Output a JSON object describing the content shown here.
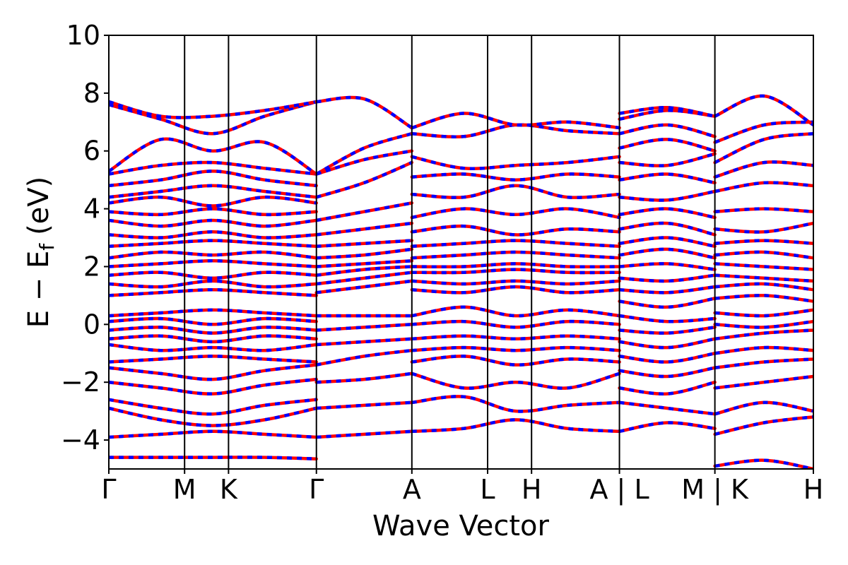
{
  "chart_data": {
    "type": "line",
    "title": "",
    "xlabel": "Wave Vector",
    "ylabel": "E − E_f (eV)",
    "ylabel_parts": {
      "main": "E − E",
      "sub": "f",
      "unit": "(eV)"
    },
    "ylim": [
      -5,
      10
    ],
    "yticks": [
      -4,
      -2,
      0,
      2,
      4,
      6,
      8,
      10
    ],
    "ytick_labels": [
      "−4",
      "−2",
      "0",
      "2",
      "4",
      "6",
      "8",
      "10"
    ],
    "xlim": [
      0,
      9.3
    ],
    "kpoints": [
      {
        "label": "Γ",
        "x": 0.0
      },
      {
        "label": "M",
        "x": 1.0
      },
      {
        "label": "K",
        "x": 1.58
      },
      {
        "label": "Γ",
        "x": 2.74
      },
      {
        "label": "A",
        "x": 4.0
      },
      {
        "label": "L",
        "x": 5.0
      },
      {
        "label": "H",
        "x": 5.58
      },
      {
        "label": "A | L",
        "x": 6.74
      },
      {
        "label": "M | K",
        "x": 8.0
      },
      {
        "label": "H",
        "x": 9.3
      }
    ],
    "line_style": {
      "series_1": "#ff0000",
      "series_2": "#0000ff",
      "series_2_dash": "dashed"
    },
    "segments": [
      {
        "x_start": 0.0,
        "x_end": 2.74,
        "bands": [
          [
            -4.6,
            -4.6,
            -4.6,
            -4.6,
            -4.65
          ],
          [
            -3.9,
            -3.8,
            -3.7,
            -3.8,
            -3.9
          ],
          [
            -2.9,
            -3.3,
            -3.5,
            -3.3,
            -2.9
          ],
          [
            -2.6,
            -2.9,
            -3.1,
            -2.8,
            -2.6
          ],
          [
            -2.0,
            -2.2,
            -2.4,
            -2.1,
            -1.9
          ],
          [
            -1.5,
            -1.7,
            -1.9,
            -1.6,
            -1.4
          ],
          [
            -1.3,
            -1.2,
            -1.1,
            -1.2,
            -1.3
          ],
          [
            -0.7,
            -0.9,
            -0.8,
            -0.9,
            -0.7
          ],
          [
            -0.5,
            -0.4,
            -0.6,
            -0.4,
            -0.5
          ],
          [
            -0.2,
            -0.1,
            -0.3,
            -0.1,
            -0.2
          ],
          [
            0.1,
            0.2,
            0.0,
            0.2,
            0.1
          ],
          [
            0.3,
            0.4,
            0.5,
            0.4,
            0.3
          ],
          [
            1.0,
            1.1,
            1.2,
            1.1,
            1.0
          ],
          [
            1.4,
            1.3,
            1.5,
            1.3,
            1.4
          ],
          [
            1.7,
            1.8,
            1.6,
            1.8,
            1.7
          ],
          [
            2.0,
            2.1,
            2.2,
            2.1,
            2.0
          ],
          [
            2.3,
            2.5,
            2.4,
            2.5,
            2.3
          ],
          [
            2.7,
            2.8,
            2.9,
            2.8,
            2.7
          ],
          [
            3.1,
            3.0,
            3.2,
            3.0,
            3.1
          ],
          [
            3.6,
            3.4,
            3.6,
            3.4,
            3.6
          ],
          [
            3.9,
            3.8,
            4.0,
            3.8,
            3.9
          ],
          [
            4.2,
            4.4,
            4.1,
            4.4,
            4.2
          ],
          [
            4.4,
            4.6,
            4.8,
            4.6,
            4.4
          ],
          [
            4.8,
            5.0,
            5.3,
            5.0,
            4.8
          ],
          [
            5.2,
            5.5,
            5.6,
            5.4,
            5.2
          ],
          [
            5.3,
            6.4,
            6.0,
            6.3,
            5.2
          ],
          [
            7.6,
            7.1,
            6.6,
            7.2,
            7.7
          ],
          [
            7.7,
            7.2,
            7.2,
            7.4,
            7.7
          ]
        ]
      },
      {
        "x_start": 2.74,
        "x_end": 4.0,
        "bands": [
          [
            -3.9,
            -3.8,
            -3.7
          ],
          [
            -2.9,
            -2.8,
            -2.7
          ],
          [
            -2.0,
            -1.9,
            -1.7
          ],
          [
            -1.4,
            -1.1,
            -0.9
          ],
          [
            -0.7,
            -0.6,
            -0.5
          ],
          [
            -0.2,
            -0.1,
            0.0
          ],
          [
            0.3,
            0.3,
            0.3
          ],
          [
            1.1,
            1.3,
            1.5
          ],
          [
            1.4,
            1.6,
            1.8
          ],
          [
            1.7,
            1.9,
            2.0
          ],
          [
            2.0,
            2.1,
            2.2
          ],
          [
            2.3,
            2.4,
            2.6
          ],
          [
            2.7,
            2.8,
            2.9
          ],
          [
            3.1,
            3.3,
            3.5
          ],
          [
            3.6,
            3.9,
            4.2
          ],
          [
            4.4,
            4.9,
            5.6
          ],
          [
            5.2,
            5.7,
            6.0
          ],
          [
            5.2,
            6.1,
            6.6
          ],
          [
            7.7,
            7.8,
            6.8
          ]
        ]
      },
      {
        "x_start": 4.0,
        "x_end": 6.74,
        "bands": [
          [
            -3.7,
            -3.6,
            -3.3,
            -3.6,
            -3.7
          ],
          [
            -2.7,
            -2.5,
            -3.0,
            -2.8,
            -2.7
          ],
          [
            -1.7,
            -2.2,
            -2.0,
            -2.2,
            -1.7
          ],
          [
            -1.3,
            -1.1,
            -1.4,
            -1.2,
            -1.3
          ],
          [
            -0.9,
            -0.8,
            -0.9,
            -0.8,
            -0.9
          ],
          [
            -0.5,
            -0.4,
            -0.5,
            -0.4,
            -0.5
          ],
          [
            0.0,
            0.1,
            -0.1,
            0.1,
            0.0
          ],
          [
            0.3,
            0.6,
            0.3,
            0.5,
            0.3
          ],
          [
            1.2,
            1.1,
            1.3,
            1.1,
            1.2
          ],
          [
            1.5,
            1.4,
            1.5,
            1.4,
            1.5
          ],
          [
            1.8,
            1.8,
            1.9,
            1.8,
            1.8
          ],
          [
            2.0,
            2.0,
            2.1,
            2.0,
            2.0
          ],
          [
            2.3,
            2.4,
            2.5,
            2.4,
            2.3
          ],
          [
            2.7,
            2.8,
            2.9,
            2.8,
            2.7
          ],
          [
            3.2,
            3.4,
            3.1,
            3.3,
            3.2
          ],
          [
            3.7,
            4.0,
            3.8,
            4.0,
            3.7
          ],
          [
            4.5,
            4.4,
            4.8,
            4.4,
            4.5
          ],
          [
            5.1,
            5.2,
            5.0,
            5.2,
            5.1
          ],
          [
            5.8,
            5.4,
            5.5,
            5.6,
            5.8
          ],
          [
            6.6,
            6.5,
            6.9,
            6.7,
            6.6
          ],
          [
            6.8,
            7.3,
            6.9,
            7.0,
            6.8
          ]
        ]
      },
      {
        "x_start": 6.74,
        "x_end": 8.0,
        "bands": [
          [
            -3.7,
            -3.4,
            -3.6
          ],
          [
            -2.7,
            -2.9,
            -3.1
          ],
          [
            -2.2,
            -2.4,
            -2.0
          ],
          [
            -1.6,
            -1.8,
            -1.5
          ],
          [
            -1.1,
            -1.3,
            -1.0
          ],
          [
            -0.6,
            -0.8,
            -0.5
          ],
          [
            -0.2,
            -0.3,
            -0.1
          ],
          [
            0.3,
            0.1,
            0.2
          ],
          [
            0.8,
            0.6,
            0.9
          ],
          [
            1.2,
            1.1,
            1.3
          ],
          [
            1.6,
            1.5,
            1.7
          ],
          [
            2.0,
            2.1,
            1.9
          ],
          [
            2.4,
            2.6,
            2.3
          ],
          [
            2.8,
            3.0,
            2.7
          ],
          [
            3.3,
            3.5,
            3.1
          ],
          [
            3.8,
            4.0,
            3.7
          ],
          [
            4.4,
            4.3,
            4.6
          ],
          [
            5.0,
            5.2,
            4.9
          ],
          [
            5.6,
            5.5,
            5.9
          ],
          [
            6.1,
            6.4,
            6.0
          ],
          [
            6.6,
            6.9,
            6.5
          ],
          [
            7.1,
            7.4,
            7.2
          ],
          [
            7.3,
            7.5,
            7.2
          ]
        ]
      },
      {
        "x_start": 8.0,
        "x_end": 9.3,
        "bands": [
          [
            -4.9,
            -4.7,
            -5.0
          ],
          [
            -3.8,
            -3.4,
            -3.2
          ],
          [
            -3.1,
            -2.7,
            -3.0
          ],
          [
            -2.2,
            -2.0,
            -1.8
          ],
          [
            -1.5,
            -1.3,
            -1.2
          ],
          [
            -1.0,
            -0.8,
            -0.9
          ],
          [
            -0.5,
            -0.3,
            -0.2
          ],
          [
            0.0,
            -0.1,
            0.1
          ],
          [
            0.4,
            0.3,
            0.5
          ],
          [
            0.9,
            1.0,
            0.8
          ],
          [
            1.3,
            1.4,
            1.2
          ],
          [
            1.7,
            1.6,
            1.5
          ],
          [
            2.1,
            2.0,
            1.9
          ],
          [
            2.4,
            2.5,
            2.3
          ],
          [
            2.8,
            2.9,
            2.8
          ],
          [
            3.3,
            3.2,
            3.5
          ],
          [
            3.9,
            4.0,
            3.9
          ],
          [
            4.6,
            4.9,
            4.8
          ],
          [
            5.1,
            5.6,
            5.5
          ],
          [
            5.6,
            6.4,
            6.6
          ],
          [
            6.3,
            6.9,
            7.0
          ],
          [
            7.2,
            7.9,
            6.9
          ]
        ]
      }
    ]
  }
}
